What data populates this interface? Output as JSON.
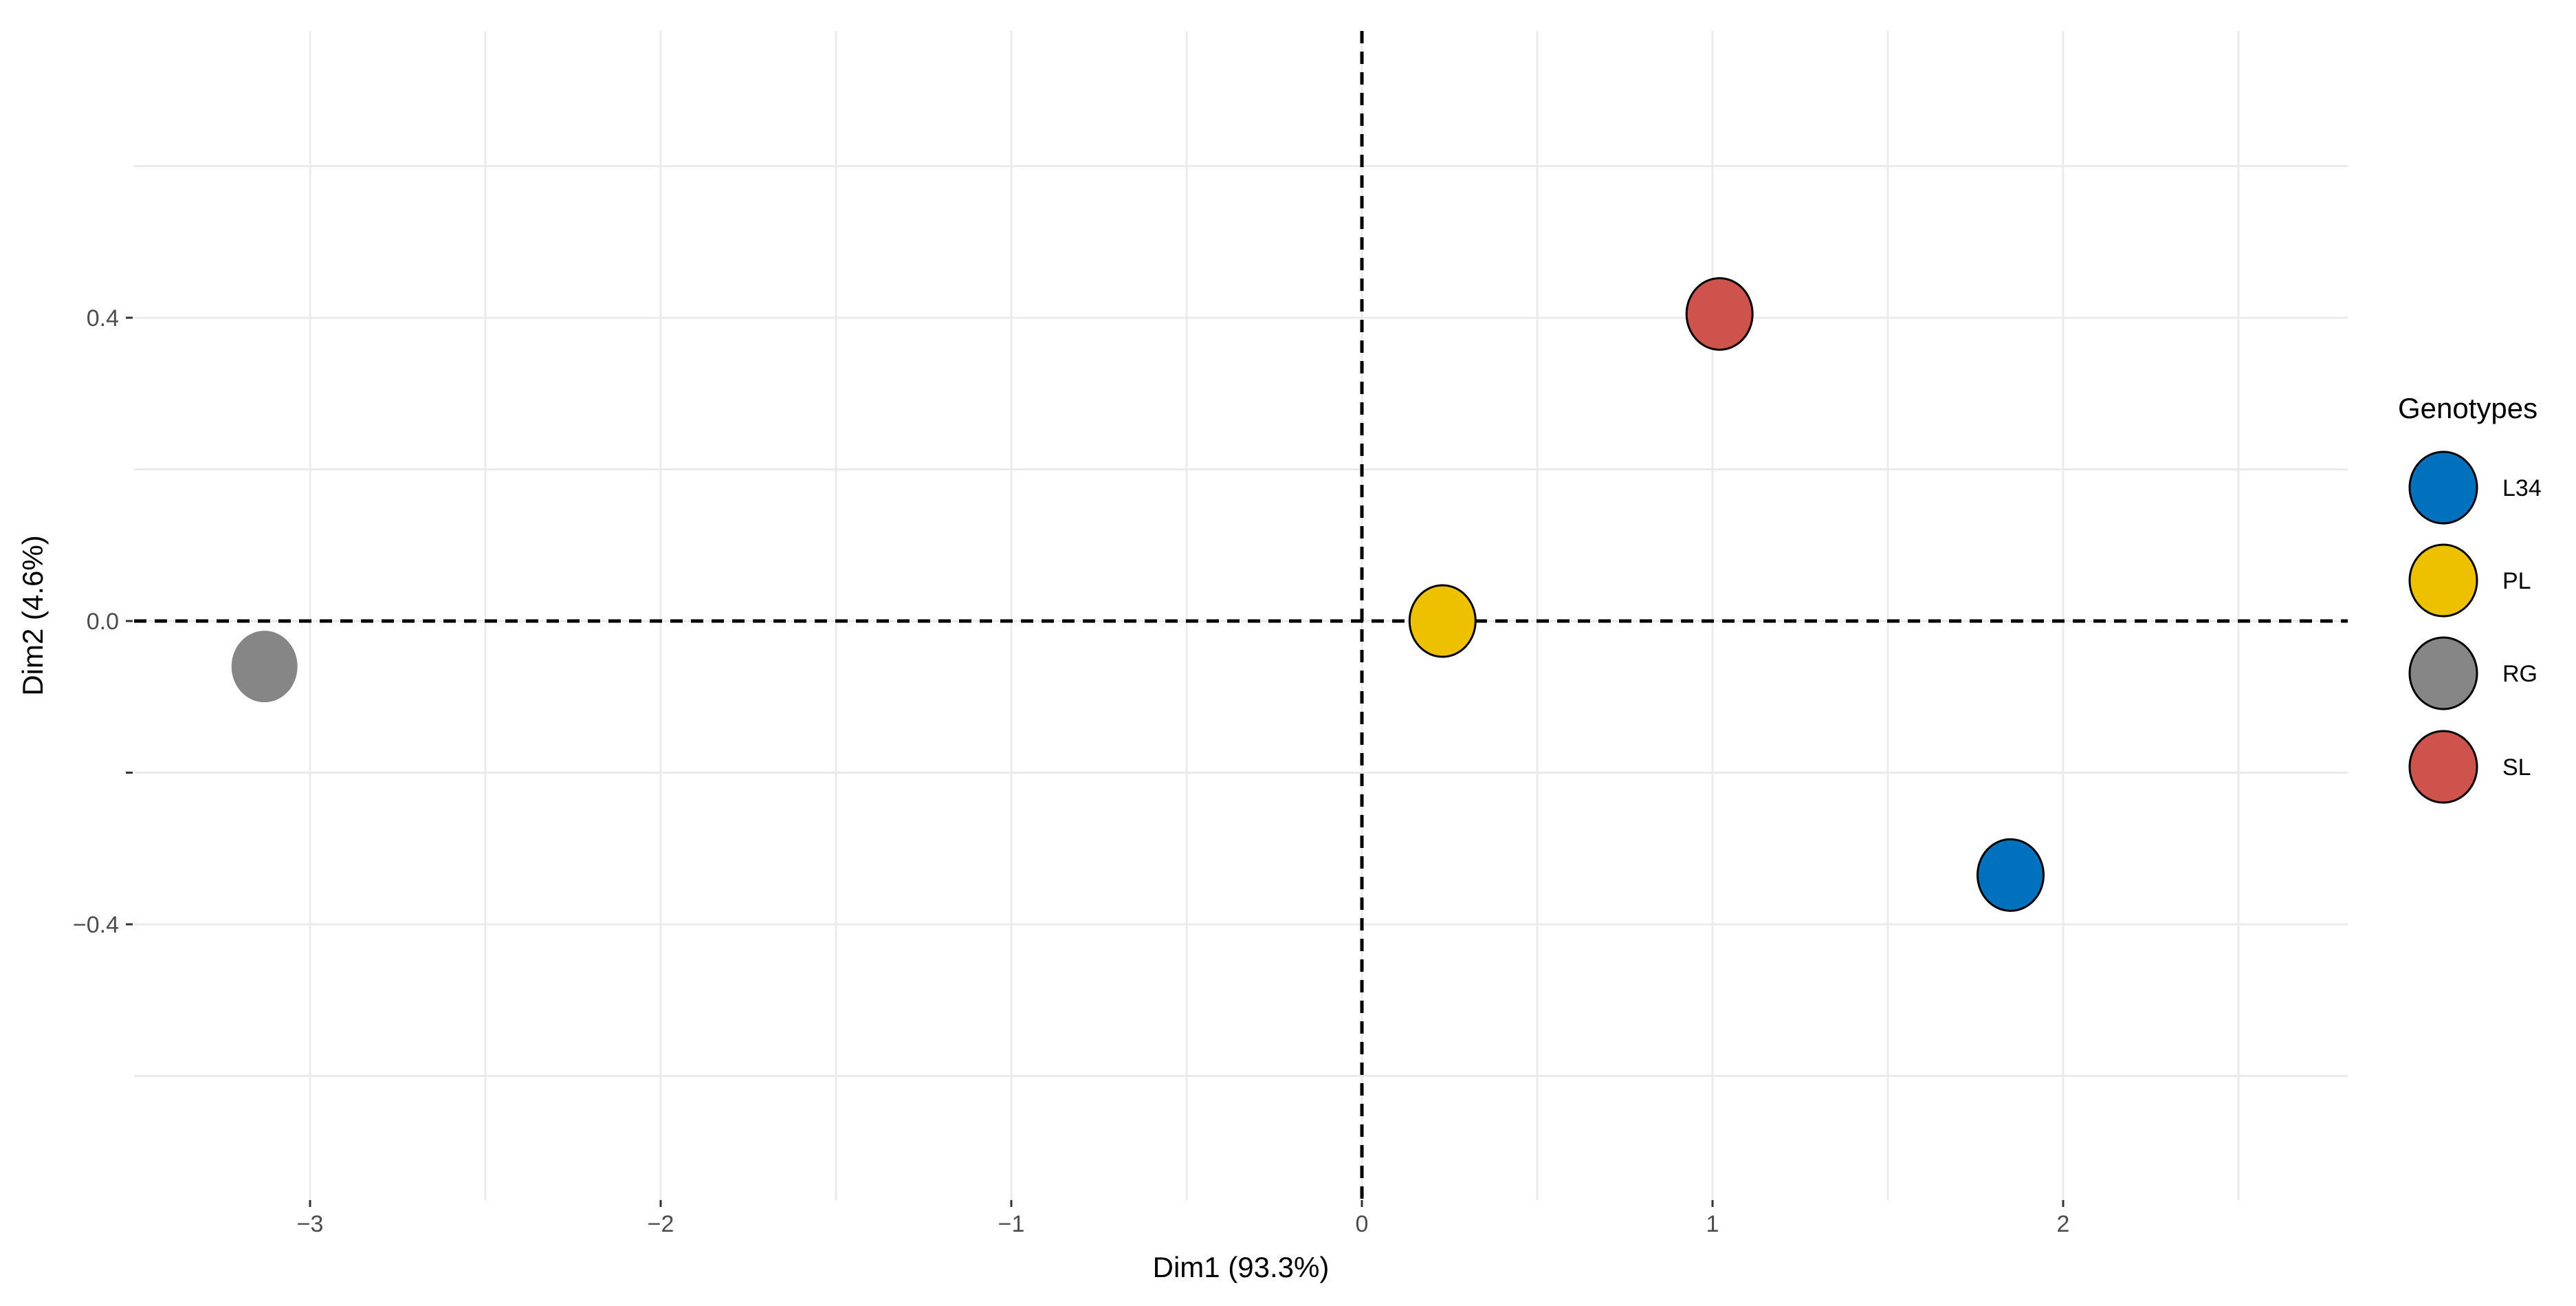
{
  "chart_data": {
    "type": "scatter",
    "xlabel": "Dim1 (93.3%)",
    "ylabel": "Dim2 (4.6%)",
    "xlim": [
      -3.5,
      2.8
    ],
    "ylim": [
      -0.75,
      0.78
    ],
    "x_ticks": [
      -3,
      -2,
      -1,
      0,
      1,
      2
    ],
    "x_tick_labels": [
      "−3",
      "−2",
      "−1",
      "0",
      "1",
      "2"
    ],
    "x_minor_grid": [
      -2.5,
      -1.5,
      -0.5,
      0.5,
      1.5,
      2.5
    ],
    "y_ticks": [
      -0.4,
      -0.2,
      0.0,
      0.4
    ],
    "y_tick_labels": [
      "−0.4",
      "",
      "0.0",
      "0.4"
    ],
    "y_grid": [
      -0.6,
      -0.4,
      -0.2,
      0.0,
      0.2,
      0.4,
      0.6
    ],
    "grid": true,
    "reference_lines": {
      "x": 0,
      "y": 0,
      "style": "dashed"
    },
    "legend": {
      "title": "Genotypes",
      "placement": "right",
      "entries": [
        "L34",
        "PL",
        "RG",
        "SL"
      ]
    },
    "series": [
      {
        "name": "L34",
        "color": "#0072BD",
        "x": [
          1.85
        ],
        "y": [
          -0.335
        ],
        "outlined": true
      },
      {
        "name": "PL",
        "color": "#EDC000",
        "x": [
          0.23
        ],
        "y": [
          0.0
        ],
        "outlined": true
      },
      {
        "name": "RG",
        "color": "#868686",
        "x": [
          -3.13
        ],
        "y": [
          -0.06
        ],
        "outlined": false
      },
      {
        "name": "SL",
        "color": "#CD534C",
        "x": [
          1.02
        ],
        "y": [
          0.405
        ],
        "outlined": true
      }
    ]
  }
}
